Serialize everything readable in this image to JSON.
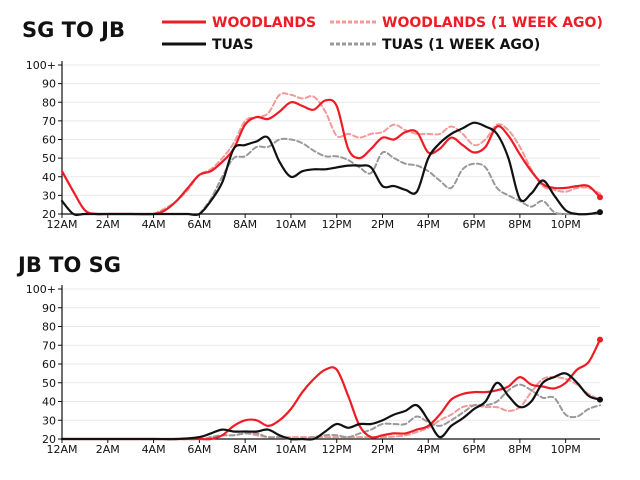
{
  "legend": {
    "woodlands": "WOODLANDS",
    "woodlands_prev": "WOODLANDS (1 WEEK AGO)",
    "tuas": "TUAS",
    "tuas_prev": "TUAS (1 WEEK AGO)"
  },
  "colors": {
    "woodlands": "#ee1c25",
    "woodlands_prev": "#f29a9a",
    "tuas": "#111111",
    "tuas_prev": "#999999",
    "axis": "#111111",
    "grid": "#e8e8e8"
  },
  "chart_data": [
    {
      "type": "line",
      "title": "SG TO JB",
      "x_unit": "hours since 12AM",
      "x_ticks": [
        "12AM",
        "2AM",
        "4AM",
        "6AM",
        "8AM",
        "10AM",
        "12PM",
        "2PM",
        "4PM",
        "6PM",
        "8PM",
        "10PM"
      ],
      "y_ticks": [
        "20",
        "30",
        "40",
        "50",
        "60",
        "70",
        "80",
        "90",
        "100+"
      ],
      "ylim": [
        20,
        100
      ],
      "xlim": [
        0,
        23.5
      ],
      "series": [
        {
          "key": "woodlands",
          "name": "WOODLANDS",
          "style": "solid",
          "x": [
            0,
            0.5,
            1,
            1.5,
            2,
            3,
            4,
            4.5,
            5,
            5.5,
            6,
            6.5,
            7,
            7.5,
            8,
            8.5,
            9,
            9.5,
            10,
            10.5,
            11,
            11.5,
            12,
            12.5,
            13,
            13.5,
            14,
            14.5,
            15,
            15.5,
            16,
            16.5,
            17,
            17.5,
            18,
            18.5,
            19,
            19.5,
            20,
            20.5,
            21,
            21.5,
            22,
            22.5,
            23,
            23.5
          ],
          "y": [
            43,
            32,
            22,
            20,
            20,
            20,
            20,
            22,
            27,
            34,
            41,
            43,
            48,
            55,
            68,
            72,
            71,
            75,
            80,
            78,
            76,
            81,
            78,
            55,
            50,
            55,
            61,
            60,
            64,
            64,
            53,
            55,
            61,
            57,
            53,
            56,
            67,
            62,
            52,
            43,
            36,
            34,
            34,
            35,
            35,
            29
          ]
        },
        {
          "key": "woodlands_prev",
          "name": "WOODLANDS (1 WEEK AGO)",
          "style": "dashed",
          "x": [
            4,
            4.5,
            5,
            5.5,
            6,
            6.5,
            7,
            7.5,
            8,
            8.5,
            9,
            9.5,
            10,
            10.5,
            11,
            11.5,
            12,
            12.5,
            13,
            13.5,
            14,
            14.5,
            15,
            15.5,
            16,
            16.5,
            17,
            17.5,
            18,
            18.5,
            19,
            19.5,
            20,
            20.5,
            21,
            21.5,
            22,
            22.5,
            23,
            23.5
          ],
          "y": [
            20,
            23,
            27,
            33,
            41,
            44,
            50,
            58,
            70,
            72,
            74,
            84,
            84,
            82,
            83,
            75,
            62,
            63,
            61,
            63,
            64,
            68,
            65,
            63,
            63,
            63,
            67,
            63,
            57,
            60,
            68,
            65,
            56,
            44,
            35,
            33,
            32,
            34,
            34,
            31
          ]
        },
        {
          "key": "tuas",
          "name": "TUAS",
          "style": "solid",
          "x": [
            0,
            0.5,
            1,
            2,
            3,
            4,
            5,
            5.5,
            6,
            6.5,
            7,
            7.5,
            8,
            8.5,
            9,
            9.5,
            10,
            10.5,
            11,
            11.5,
            12,
            12.5,
            13,
            13.5,
            14,
            14.5,
            15,
            15.5,
            16,
            16.5,
            17,
            17.5,
            18,
            18.5,
            19,
            19.5,
            20,
            20.5,
            21,
            21.5,
            22,
            22.5,
            23,
            23.5
          ],
          "y": [
            27,
            20,
            20,
            20,
            20,
            20,
            20,
            20,
            20,
            27,
            37,
            55,
            57,
            59,
            61,
            48,
            40,
            43,
            44,
            44,
            45,
            46,
            46,
            45,
            35,
            35,
            33,
            32,
            50,
            58,
            63,
            66,
            69,
            67,
            63,
            50,
            28,
            31,
            38,
            30,
            22,
            20,
            20,
            21
          ]
        },
        {
          "key": "tuas_prev",
          "name": "TUAS (1 WEEK AGO)",
          "style": "dashed",
          "x": [
            6,
            6.5,
            7,
            7.5,
            8,
            8.5,
            9,
            9.5,
            10,
            10.5,
            11,
            11.5,
            12,
            12.5,
            13,
            13.5,
            14,
            14.5,
            15,
            15.5,
            16,
            16.5,
            17,
            17.5,
            18,
            18.5,
            19,
            19.5,
            20,
            20.5,
            21,
            21.5,
            22,
            22.5,
            23,
            23.5
          ],
          "y": [
            20,
            28,
            40,
            50,
            51,
            56,
            56,
            60,
            60,
            58,
            54,
            51,
            51,
            49,
            45,
            42,
            53,
            50,
            47,
            46,
            43,
            38,
            34,
            44,
            47,
            45,
            34,
            30,
            27,
            24,
            27,
            21,
            20,
            20,
            20,
            20
          ]
        }
      ],
      "end_markers": [
        {
          "series": "woodlands",
          "x": 23.5,
          "y": 29
        },
        {
          "series": "tuas",
          "x": 23.5,
          "y": 21
        }
      ]
    },
    {
      "type": "line",
      "title": "JB TO SG",
      "x_unit": "hours since 12AM",
      "x_ticks": [
        "12AM",
        "2AM",
        "4AM",
        "6AM",
        "8AM",
        "10AM",
        "12PM",
        "2PM",
        "4PM",
        "6PM",
        "8PM",
        "10PM"
      ],
      "y_ticks": [
        "20",
        "30",
        "40",
        "50",
        "60",
        "70",
        "80",
        "90",
        "100+"
      ],
      "ylim": [
        20,
        100
      ],
      "xlim": [
        0,
        23.5
      ],
      "series": [
        {
          "key": "woodlands",
          "name": "WOODLANDS",
          "style": "solid",
          "x": [
            0,
            1,
            2,
            3,
            4,
            5,
            6,
            6.5,
            7,
            7.5,
            8,
            8.5,
            9,
            9.5,
            10,
            10.5,
            11,
            11.5,
            12,
            12.5,
            13,
            13.5,
            14,
            14.5,
            15,
            15.5,
            16,
            16.5,
            17,
            17.5,
            18,
            18.5,
            19,
            19.5,
            20,
            20.5,
            21,
            21.5,
            22,
            22.5,
            23,
            23.5
          ],
          "y": [
            20,
            20,
            20,
            20,
            20,
            20,
            20,
            20,
            22,
            27,
            30,
            30,
            27,
            30,
            36,
            45,
            52,
            57,
            57,
            43,
            27,
            21,
            22,
            23,
            23,
            25,
            27,
            33,
            41,
            44,
            45,
            45,
            46,
            48,
            53,
            49,
            48,
            47,
            50,
            57,
            61,
            73
          ]
        },
        {
          "key": "woodlands_prev",
          "name": "WOODLANDS (1 WEEK AGO)",
          "style": "dashed",
          "x": [
            0,
            2,
            4,
            6,
            6.5,
            7,
            7.5,
            8,
            8.5,
            9,
            9.5,
            10,
            11,
            12,
            13,
            14,
            15,
            16,
            16.5,
            17,
            17.5,
            18,
            18.5,
            19,
            19.5,
            20,
            20.5,
            21,
            21.5,
            22,
            22.5,
            23,
            23.5
          ],
          "y": [
            20,
            20,
            20,
            20,
            21,
            22,
            22,
            23,
            22,
            21,
            21,
            21,
            21,
            21,
            21,
            21,
            22,
            26,
            30,
            33,
            37,
            38,
            37,
            37,
            35,
            37,
            45,
            52,
            53,
            52,
            49,
            44,
            41
          ]
        },
        {
          "key": "tuas",
          "name": "TUAS",
          "style": "solid",
          "x": [
            0,
            1,
            2,
            3,
            4,
            5,
            6,
            6.5,
            7,
            7.5,
            8,
            8.5,
            9,
            9.5,
            10,
            10.5,
            11,
            11.5,
            12,
            12.5,
            13,
            13.5,
            14,
            14.5,
            15,
            15.5,
            16,
            16.5,
            17,
            17.5,
            18,
            18.5,
            19,
            19.5,
            20,
            20.5,
            21,
            21.5,
            22,
            22.5,
            23,
            23.5
          ],
          "y": [
            20,
            20,
            20,
            20,
            20,
            20,
            21,
            23,
            25,
            24,
            24,
            24,
            25,
            22,
            20,
            20,
            20,
            24,
            28,
            26,
            28,
            28,
            30,
            33,
            35,
            38,
            30,
            21,
            27,
            31,
            36,
            40,
            50,
            43,
            37,
            40,
            50,
            53,
            55,
            50,
            43,
            41
          ]
        },
        {
          "key": "tuas_prev",
          "name": "TUAS (1 WEEK AGO)",
          "style": "dashed",
          "x": [
            0,
            2,
            4,
            6,
            6.5,
            7,
            7.5,
            8,
            8.5,
            9,
            9.5,
            10,
            10.5,
            11,
            11.5,
            12,
            12.5,
            13,
            13.5,
            14,
            14.5,
            15,
            15.5,
            16,
            16.5,
            17,
            17.5,
            18,
            18.5,
            19,
            19.5,
            20,
            20.5,
            21,
            21.5,
            22,
            22.5,
            23,
            23.5
          ],
          "y": [
            20,
            20,
            20,
            20,
            21,
            22,
            22,
            23,
            23,
            21,
            21,
            20,
            20,
            21,
            22,
            22,
            21,
            23,
            25,
            28,
            28,
            28,
            32,
            29,
            27,
            30,
            34,
            38,
            38,
            40,
            46,
            49,
            46,
            42,
            42,
            33,
            32,
            36,
            38
          ]
        }
      ],
      "end_markers": [
        {
          "series": "woodlands",
          "x": 23.5,
          "y": 73
        },
        {
          "series": "tuas",
          "x": 23.5,
          "y": 41
        }
      ]
    }
  ]
}
